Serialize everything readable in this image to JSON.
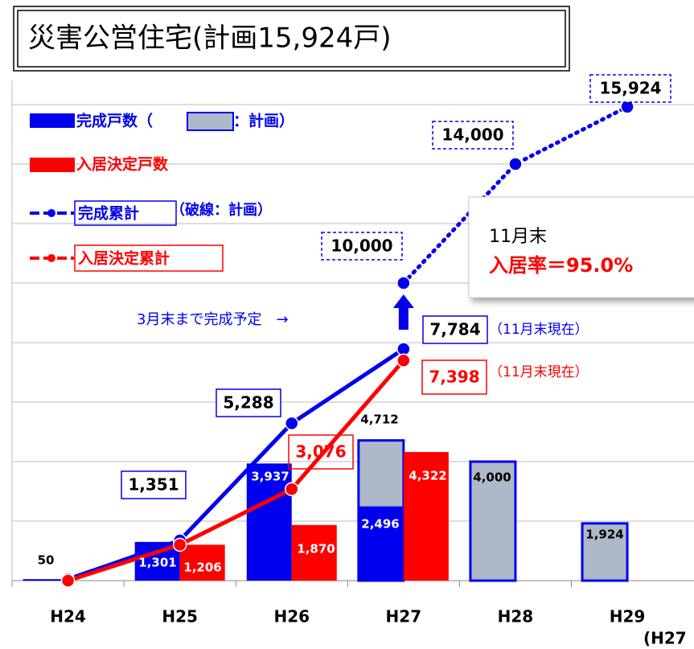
{
  "chart_data": {
    "type": "bar",
    "title": "災害公営住宅(計画15,924戸)",
    "categories": [
      "H24",
      "H25",
      "H26",
      "H27",
      "H28",
      "H29"
    ],
    "ylim": [
      0,
      16000
    ],
    "yticks": [
      0,
      2000,
      4000,
      6000,
      8000,
      10000,
      12000,
      14000,
      16000
    ],
    "grid": true,
    "series": [
      {
        "name": "完成戸数（",
        "kind": "bar",
        "color": "#0000ee",
        "values": [
          50,
          1301,
          3937,
          2496,
          null,
          null
        ],
        "value_labels": [
          "50",
          "1,301",
          "3,937",
          "2,496",
          null,
          null
        ]
      },
      {
        "name": "：計画）",
        "kind": "plan-bar",
        "color": "#adb9c8",
        "values": [
          null,
          null,
          null,
          4712,
          4000,
          1924
        ],
        "value_labels": [
          null,
          null,
          null,
          "4,712",
          "4,000",
          "1,924"
        ]
      },
      {
        "name": "入居決定戸数",
        "kind": "bar",
        "color": "#ff0000",
        "values": [
          null,
          1206,
          1870,
          4322,
          null,
          null
        ],
        "value_labels": [
          null,
          "1,206",
          "1,870",
          "4,322",
          null,
          null
        ]
      },
      {
        "name": "完成累計",
        "kind": "line",
        "color": "#0000ee",
        "values": [
          50,
          1351,
          5288,
          7784,
          null,
          null
        ],
        "value_labels": [
          null,
          "1,351",
          "5,288",
          "7,784",
          null,
          null
        ]
      },
      {
        "name": "（破線：計画）",
        "kind": "dotted",
        "color": "#0000ee",
        "values": [
          null,
          null,
          null,
          10000,
          14000,
          15924
        ],
        "value_labels": [
          null,
          null,
          null,
          "10,000",
          "14,000",
          "15,924"
        ]
      },
      {
        "name": "入居決定累計",
        "kind": "line",
        "color": "#ff0000",
        "values": [
          0,
          1206,
          3076,
          7398,
          null,
          null
        ],
        "value_labels": [
          null,
          null,
          "3,076",
          "7,398",
          null,
          null
        ]
      }
    ],
    "annotations": [
      "3月末まで完成予定　→",
      "（11月末現在）",
      "（11月末現在）",
      "11月末",
      "入居率＝95.0%",
      "(H27"
    ]
  }
}
